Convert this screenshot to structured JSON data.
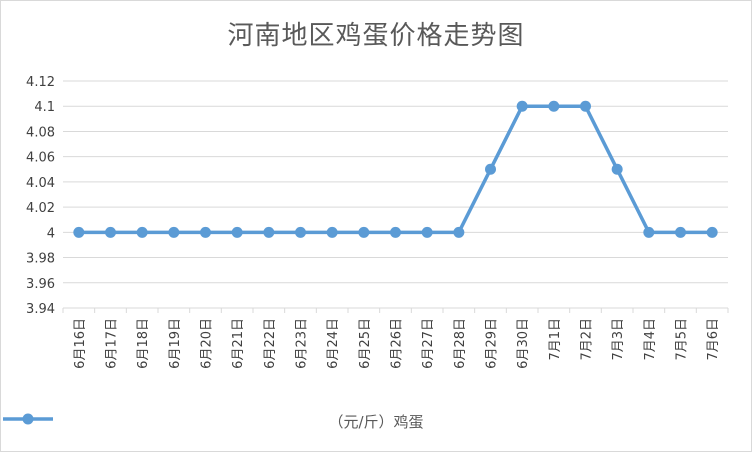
{
  "chart_data": {
    "type": "line",
    "title": "河南地区鸡蛋价格走势图",
    "categories": [
      "6月16日",
      "6月17日",
      "6月18日",
      "6月19日",
      "6月20日",
      "6月21日",
      "6月22日",
      "6月23日",
      "6月24日",
      "6月25日",
      "6月26日",
      "6月27日",
      "6月28日",
      "6月29日",
      "6月30日",
      "7月1日",
      "7月2日",
      "7月3日",
      "7月4日",
      "7月5日",
      "7月6日"
    ],
    "series": [
      {
        "name": "（元/斤）鸡蛋",
        "values": [
          4,
          4,
          4,
          4,
          4,
          4,
          4,
          4,
          4,
          4,
          4,
          4,
          4,
          4.05,
          4.1,
          4.1,
          4.1,
          4.05,
          4,
          4,
          4
        ]
      }
    ],
    "yticks": [
      "3.94",
      "3.96",
      "3.98",
      "4",
      "4.02",
      "4.04",
      "4.06",
      "4.08",
      "4.1",
      "4.12"
    ],
    "ylim": [
      3.94,
      4.12
    ],
    "grid": true,
    "legend": "bottom",
    "series_color": "#5b9bd5",
    "grid_color": "#d9d9d9",
    "text_color": "#595959"
  }
}
